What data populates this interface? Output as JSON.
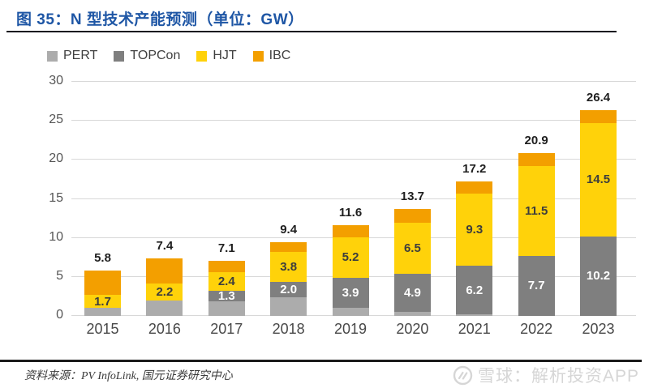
{
  "header": {
    "title": "图 35：N 型技术产能预测（单位：GW）"
  },
  "chart_data": {
    "type": "bar",
    "stacked": true,
    "title": "图 35：N 型技术产能预测（单位：GW）",
    "unit": "GW",
    "categories": [
      "2015",
      "2016",
      "2017",
      "2018",
      "2019",
      "2020",
      "2021",
      "2022",
      "2023"
    ],
    "series": [
      {
        "name": "PERT",
        "color": "#ACACAC",
        "show_labels": false,
        "label_color": "#3d3d3d",
        "values": [
          1.0,
          2.0,
          1.9,
          2.4,
          1.0,
          0.5,
          0.2,
          0,
          0
        ]
      },
      {
        "name": "TOPCon",
        "color": "#7F7F7F",
        "show_labels": true,
        "label_color": "#ffffff",
        "values": [
          0,
          0,
          1.3,
          2.0,
          3.9,
          4.9,
          6.2,
          7.7,
          10.2
        ]
      },
      {
        "name": "HJT",
        "color": "#FFD20A",
        "show_labels": true,
        "label_color": "#3d3d3d",
        "values": [
          1.7,
          2.2,
          2.4,
          3.8,
          5.2,
          6.5,
          9.3,
          11.5,
          14.5
        ]
      },
      {
        "name": "IBC",
        "color": "#F39F00",
        "show_labels": false,
        "label_color": "#3d3d3d",
        "values": [
          3.1,
          3.2,
          1.5,
          1.2,
          1.5,
          1.8,
          1.5,
          1.7,
          1.7
        ]
      }
    ],
    "totals": [
      5.8,
      7.4,
      7.1,
      9.4,
      11.6,
      13.7,
      17.2,
      20.9,
      26.4
    ],
    "ylim": [
      0,
      30
    ],
    "yticks": [
      0,
      5,
      10,
      15,
      20,
      25,
      30
    ],
    "grid": "horizontal",
    "legend_position": "top-left"
  },
  "footer": {
    "source": "资料来源：PV InfoLink, 国元证券研究中心"
  },
  "watermark": {
    "text": "雪球：解析投资APP",
    "logo": "snowball-icon"
  }
}
